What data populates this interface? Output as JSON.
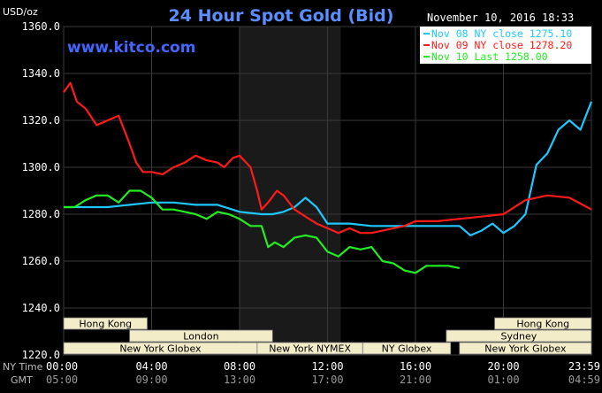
{
  "header": {
    "unit": "USD/oz",
    "title": "24 Hour Spot Gold (Bid)",
    "timestamp": "November 10, 2016 18:33",
    "watermark": "www.kitco.com"
  },
  "colors": {
    "background": "#000000",
    "plot_area": "#000000",
    "nymex_band": "#1a1a1a",
    "grid": "#3a3a3a",
    "axis_text": "#ffffff",
    "title": "#5b8dff",
    "watermark": "#4466ff",
    "session_box": "#f3ecc8",
    "series_nov08": "#1ec8ff",
    "series_nov09": "#ff1a1a",
    "series_nov10": "#22ee22"
  },
  "legend": [
    {
      "label": "Nov 08 NY close 1275.10",
      "color": "#1ec8ff"
    },
    {
      "label": "Nov 09 NY close 1278.20",
      "color": "#ff1a1a"
    },
    {
      "label": "Nov 10 Last 1258.00",
      "color": "#22ee22"
    }
  ],
  "axis_labels": {
    "ny_time": "NY Time",
    "gmt": "GMT"
  },
  "sessions": [
    {
      "name": "Hong Kong",
      "start": 0,
      "end": 3.8,
      "row": 0
    },
    {
      "name": "London",
      "start": 3,
      "end": 9.5,
      "row": 1
    },
    {
      "name": "New York Globex",
      "start": 0,
      "end": 8.8,
      "row": 2
    },
    {
      "name": "New York NYMEX",
      "start": 8.8,
      "end": 13.6,
      "row": 2
    },
    {
      "name": "NY Globex",
      "start": 13.6,
      "end": 17.6,
      "row": 2
    },
    {
      "name": "Hong Kong",
      "start": 19.6,
      "end": 24,
      "row": 0
    },
    {
      "name": "Sydney",
      "start": 17.4,
      "end": 24,
      "row": 1
    },
    {
      "name": "New York Globex",
      "start": 18,
      "end": 24,
      "row": 2
    }
  ],
  "chart_data": {
    "type": "line",
    "title": "24 Hour Spot Gold (Bid)",
    "ylabel": "USD/oz",
    "xlim": [
      0,
      24
    ],
    "ylim": [
      1220,
      1360
    ],
    "grid": true,
    "legend_position": "top-right",
    "shaded_band": [
      8,
      12.6
    ],
    "x_ticks_ny": [
      "00:00",
      "04:00",
      "08:00",
      "12:00",
      "16:00",
      "20:00",
      "23:59"
    ],
    "x_ticks_gmt": [
      "05:00",
      "09:00",
      "13:00",
      "17:00",
      "21:00",
      "01:00",
      "04:59"
    ],
    "x_tick_positions": [
      0,
      4,
      8,
      12,
      16,
      20,
      24
    ],
    "y_ticks": [
      "1360.0",
      "1340.0",
      "1320.0",
      "1300.0",
      "1280.0",
      "1260.0",
      "1240.0",
      "1220.0"
    ],
    "y_tick_values": [
      1360,
      1340,
      1320,
      1300,
      1280,
      1260,
      1240,
      1220
    ],
    "series": [
      {
        "name": "Nov 08 NY close 1275.10",
        "color": "#1ec8ff",
        "x": [
          0,
          1,
          2,
          3,
          4,
          5,
          6,
          7,
          8,
          9,
          9.5,
          10,
          10.5,
          11,
          11.5,
          12,
          13,
          14,
          15,
          16,
          17,
          18,
          18.5,
          19,
          19.5,
          20,
          20.5,
          21,
          21.5,
          22,
          22.5,
          23,
          23.5,
          24
        ],
        "y": [
          1283,
          1283,
          1283,
          1284,
          1285,
          1285,
          1284,
          1284,
          1281,
          1280,
          1280,
          1281,
          1283,
          1287,
          1283,
          1276,
          1276,
          1275,
          1275,
          1275,
          1275,
          1275,
          1271,
          1273,
          1276,
          1272,
          1275,
          1280,
          1301,
          1306,
          1316,
          1320,
          1316,
          1328
        ]
      },
      {
        "name": "Nov 09 NY close 1278.20",
        "color": "#ff1a1a",
        "x": [
          0,
          0.3,
          0.6,
          1,
          1.5,
          2,
          2.5,
          3,
          3.3,
          3.6,
          4,
          4.5,
          5,
          5.5,
          6,
          6.5,
          7,
          7.3,
          7.7,
          8,
          8.5,
          8.8,
          9,
          9.3,
          9.7,
          10,
          10.5,
          11,
          11.5,
          12,
          12.5,
          13,
          13.5,
          14,
          14.5,
          15,
          15.5,
          16,
          17,
          18,
          19,
          20,
          21,
          22,
          23,
          24
        ],
        "y": [
          1332,
          1336,
          1328,
          1325,
          1318,
          1320,
          1322,
          1310,
          1302,
          1298,
          1298,
          1297,
          1300,
          1302,
          1305,
          1303,
          1302,
          1300,
          1304,
          1305,
          1300,
          1290,
          1282,
          1285,
          1290,
          1288,
          1282,
          1279,
          1276,
          1274,
          1272,
          1274,
          1272,
          1272,
          1273,
          1274,
          1275,
          1277,
          1277,
          1278,
          1279,
          1280,
          1286,
          1288,
          1287,
          1282
        ]
      },
      {
        "name": "Nov 10 Last 1258.00",
        "color": "#22ee22",
        "x": [
          0,
          0.5,
          1,
          1.5,
          2,
          2.5,
          3,
          3.5,
          4,
          4.5,
          5,
          5.5,
          6,
          6.5,
          7,
          7.5,
          8,
          8.5,
          9,
          9.3,
          9.6,
          10,
          10.5,
          11,
          11.5,
          12,
          12.5,
          13,
          13.5,
          14,
          14.5,
          15,
          15.5,
          16,
          16.5,
          17,
          17.5,
          18
        ],
        "y": [
          1283,
          1283,
          1286,
          1288,
          1288,
          1285,
          1290,
          1290,
          1287,
          1282,
          1282,
          1281,
          1280,
          1278,
          1281,
          1280,
          1278,
          1275,
          1275,
          1266,
          1268,
          1266,
          1270,
          1271,
          1270,
          1264,
          1262,
          1266,
          1265,
          1266,
          1260,
          1259,
          1256,
          1255,
          1258,
          1258,
          1258,
          1257
        ]
      }
    ]
  }
}
